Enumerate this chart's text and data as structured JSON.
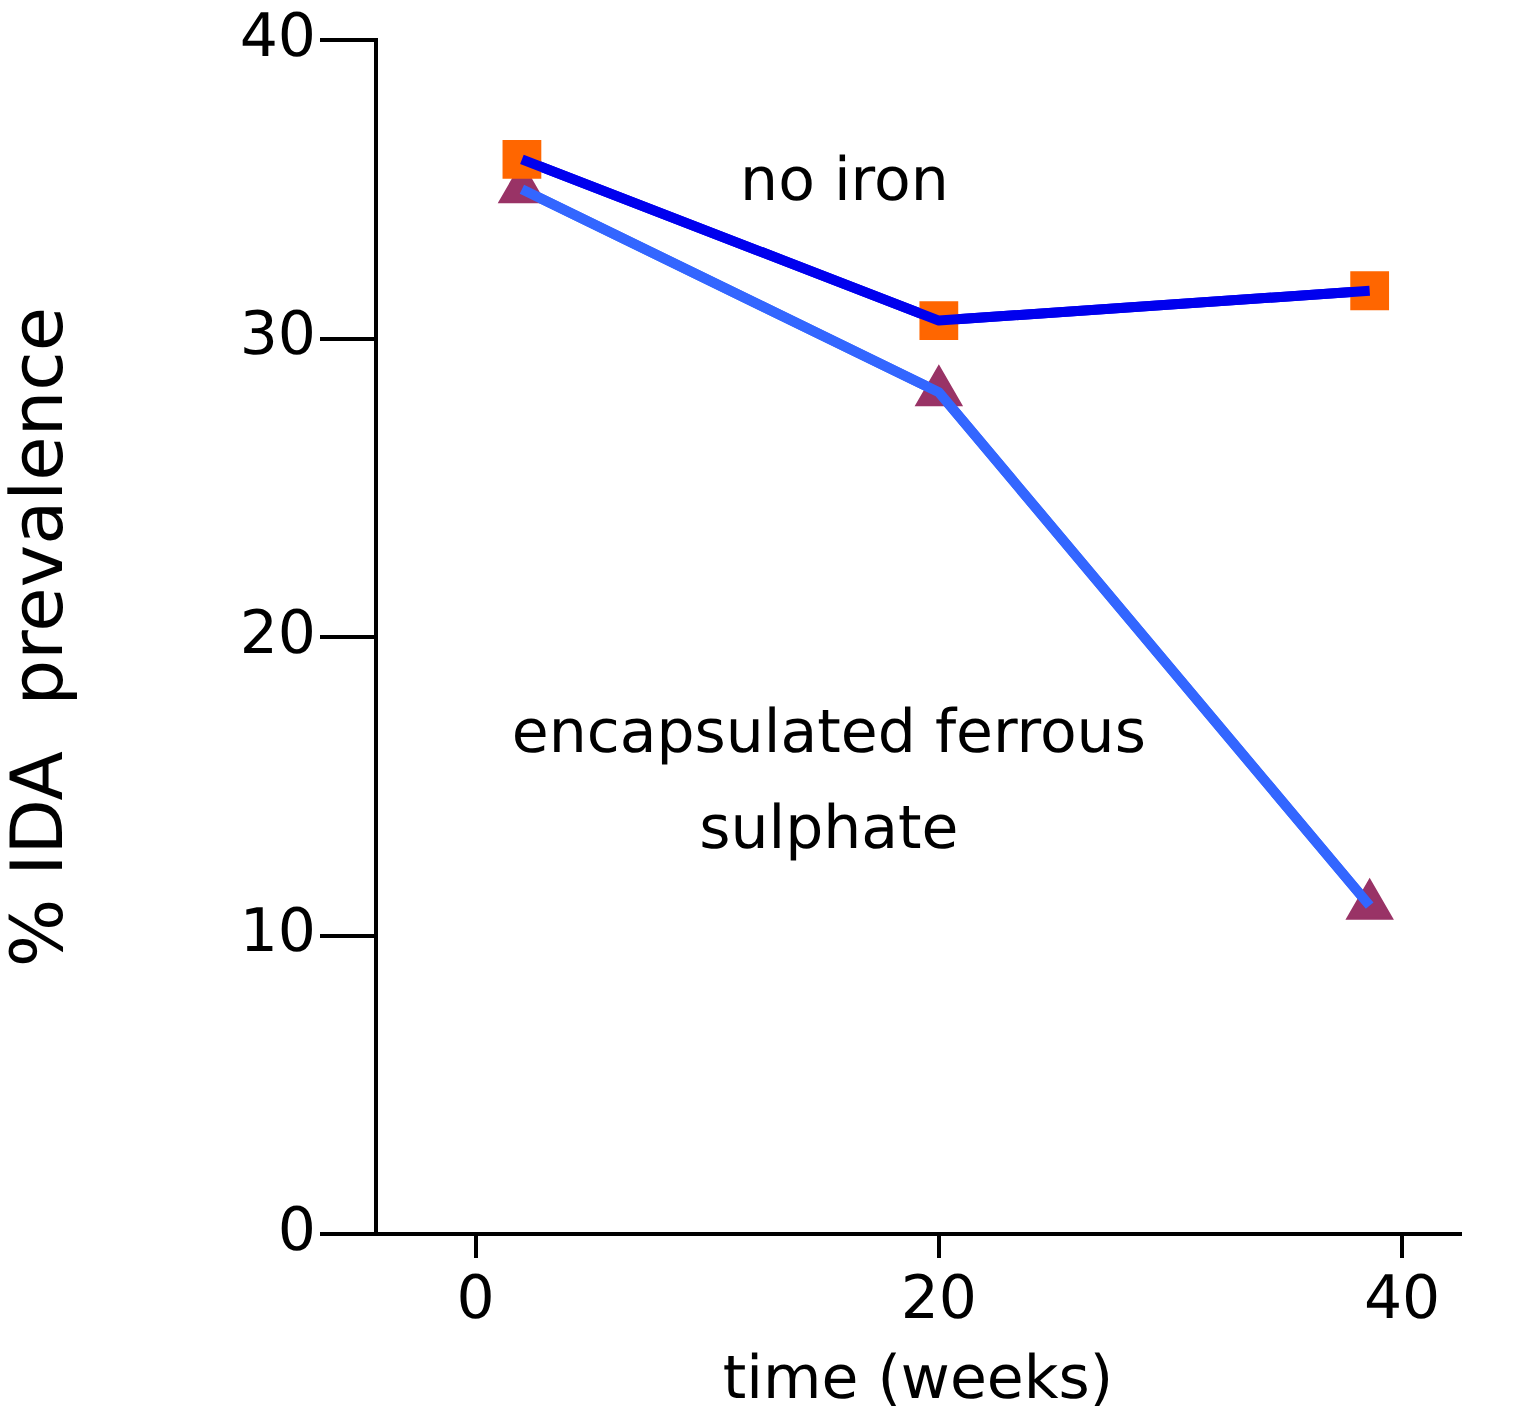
{
  "chart_data": {
    "type": "line",
    "xlabel": "time (weeks)",
    "ylabel": "% IDA  prevalence",
    "x": [
      2,
      20,
      38.6
    ],
    "series": [
      {
        "name": "no iron",
        "color": "#0000ee",
        "marker": "square",
        "values": [
          36.0,
          30.6,
          31.6
        ]
      },
      {
        "name": "encapsulated ferrous sulphate",
        "color": "#3366ff",
        "marker": "triangle",
        "values": [
          35.0,
          28.2,
          11.0
        ]
      }
    ],
    "xlim": [
      -4.3,
      42.5
    ],
    "xticks": [
      0,
      20,
      40
    ],
    "ylim": [
      0,
      40
    ],
    "yticks": [
      0,
      10,
      20,
      30,
      40
    ],
    "grid": false,
    "legend": false
  }
}
